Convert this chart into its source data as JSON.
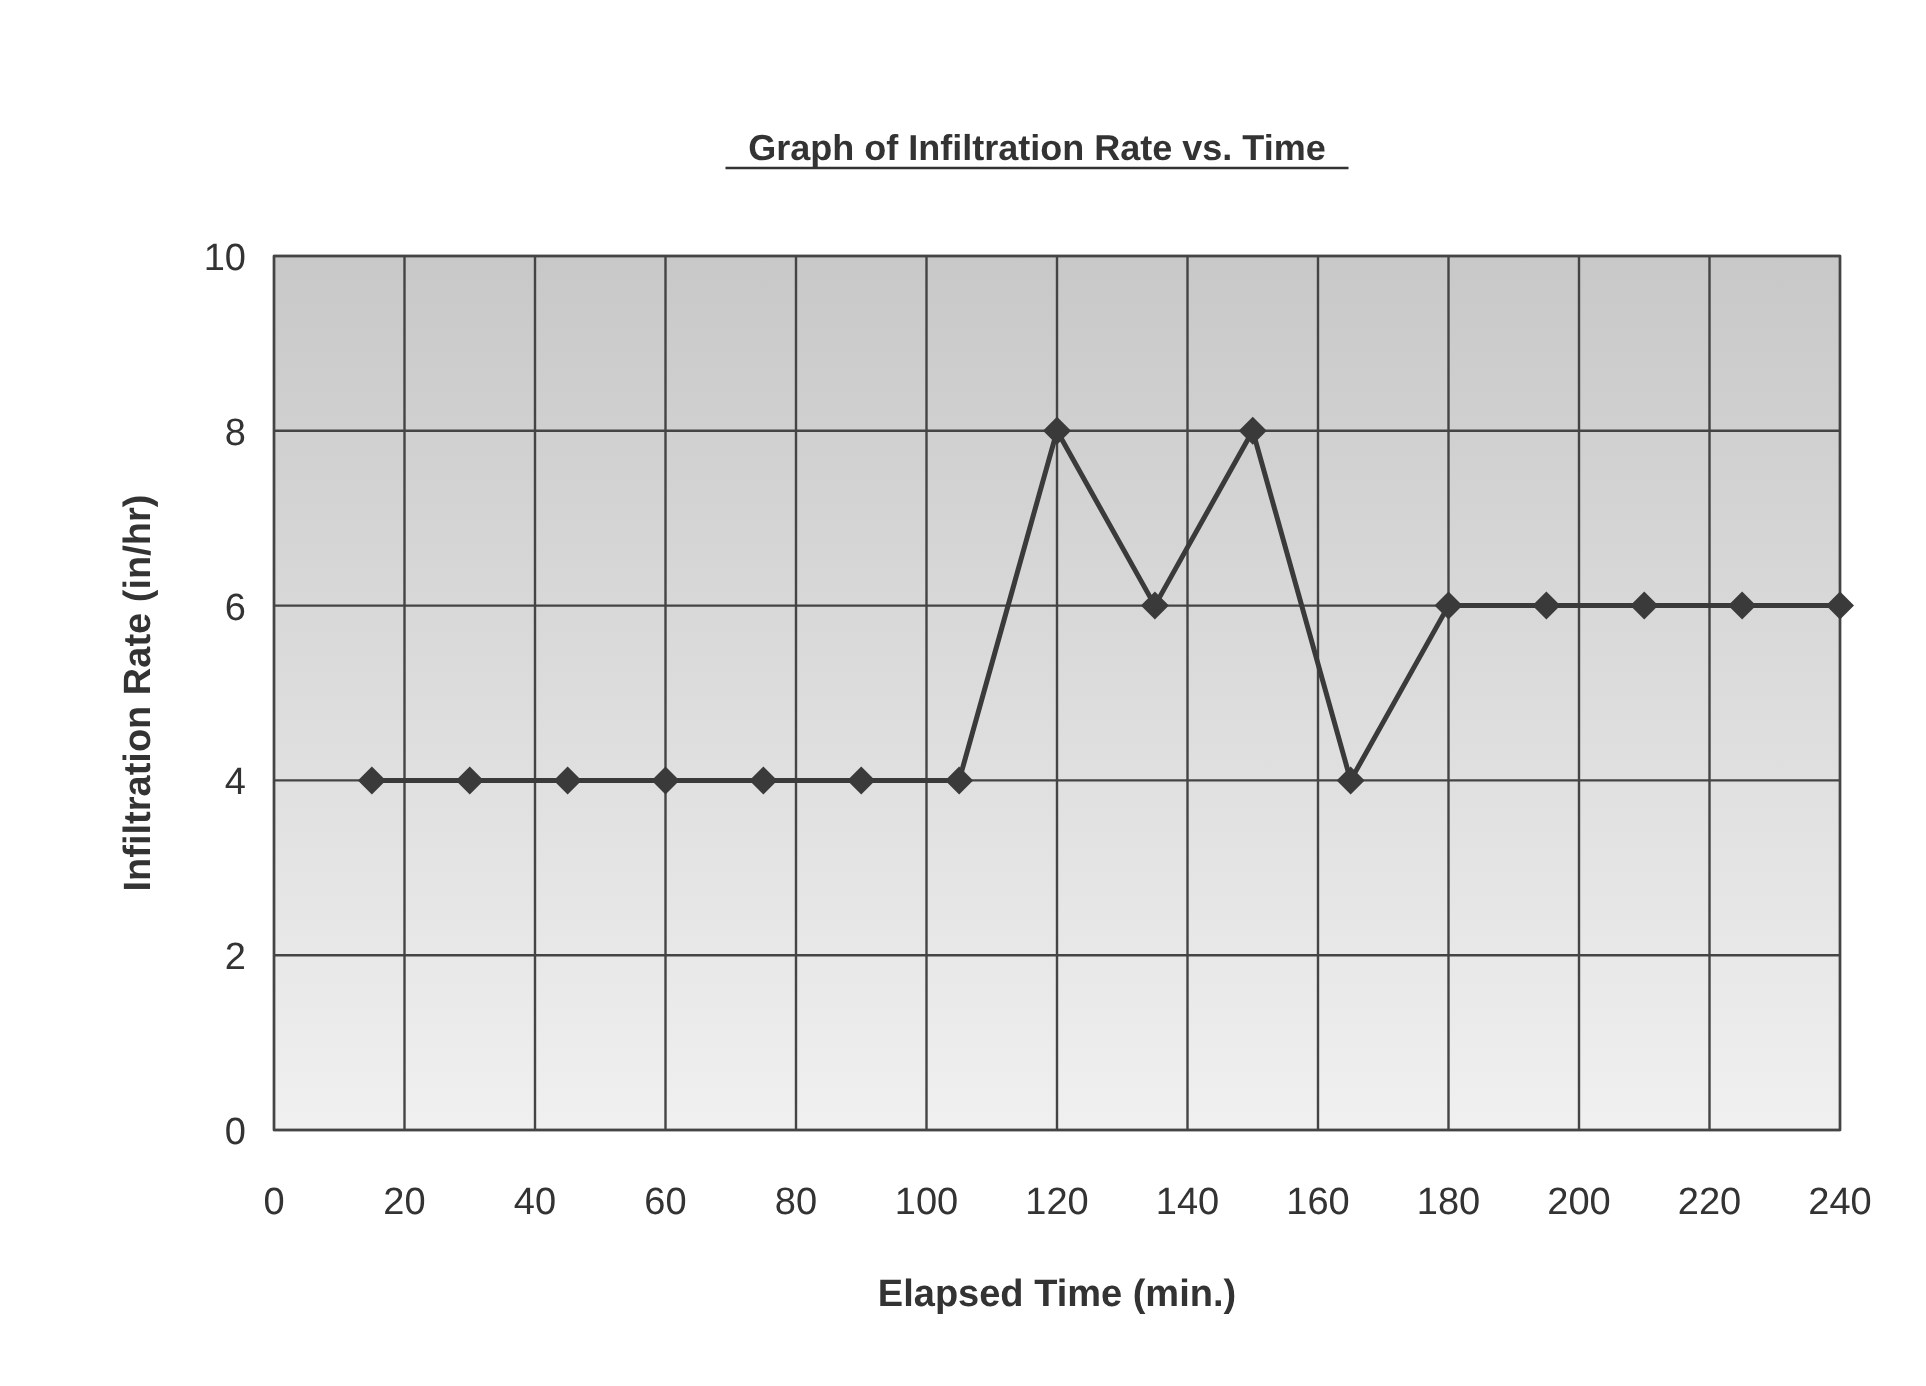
{
  "chart_data": {
    "type": "line",
    "title": "Graph of Infiltration Rate vs. Time",
    "xlabel": "Elapsed Time (min.)",
    "ylabel": "Infiltration Rate (in/hr)",
    "x": [
      15,
      30,
      45,
      60,
      75,
      90,
      105,
      120,
      135,
      150,
      165,
      180,
      195,
      210,
      225,
      240
    ],
    "series": [
      {
        "color": "#3a3a3a",
        "values": [
          4,
          4,
          4,
          4,
          4,
          4,
          4,
          8,
          6,
          8,
          4,
          6,
          6,
          6,
          6,
          6
        ]
      }
    ],
    "xlim": [
      0,
      240
    ],
    "xticks": [
      0,
      20,
      40,
      60,
      80,
      100,
      120,
      140,
      160,
      180,
      200,
      220,
      240
    ],
    "ylim": [
      0,
      10
    ],
    "yticks": [
      0,
      2,
      4,
      6,
      8,
      10
    ],
    "grid": true,
    "marker": "diamond"
  }
}
